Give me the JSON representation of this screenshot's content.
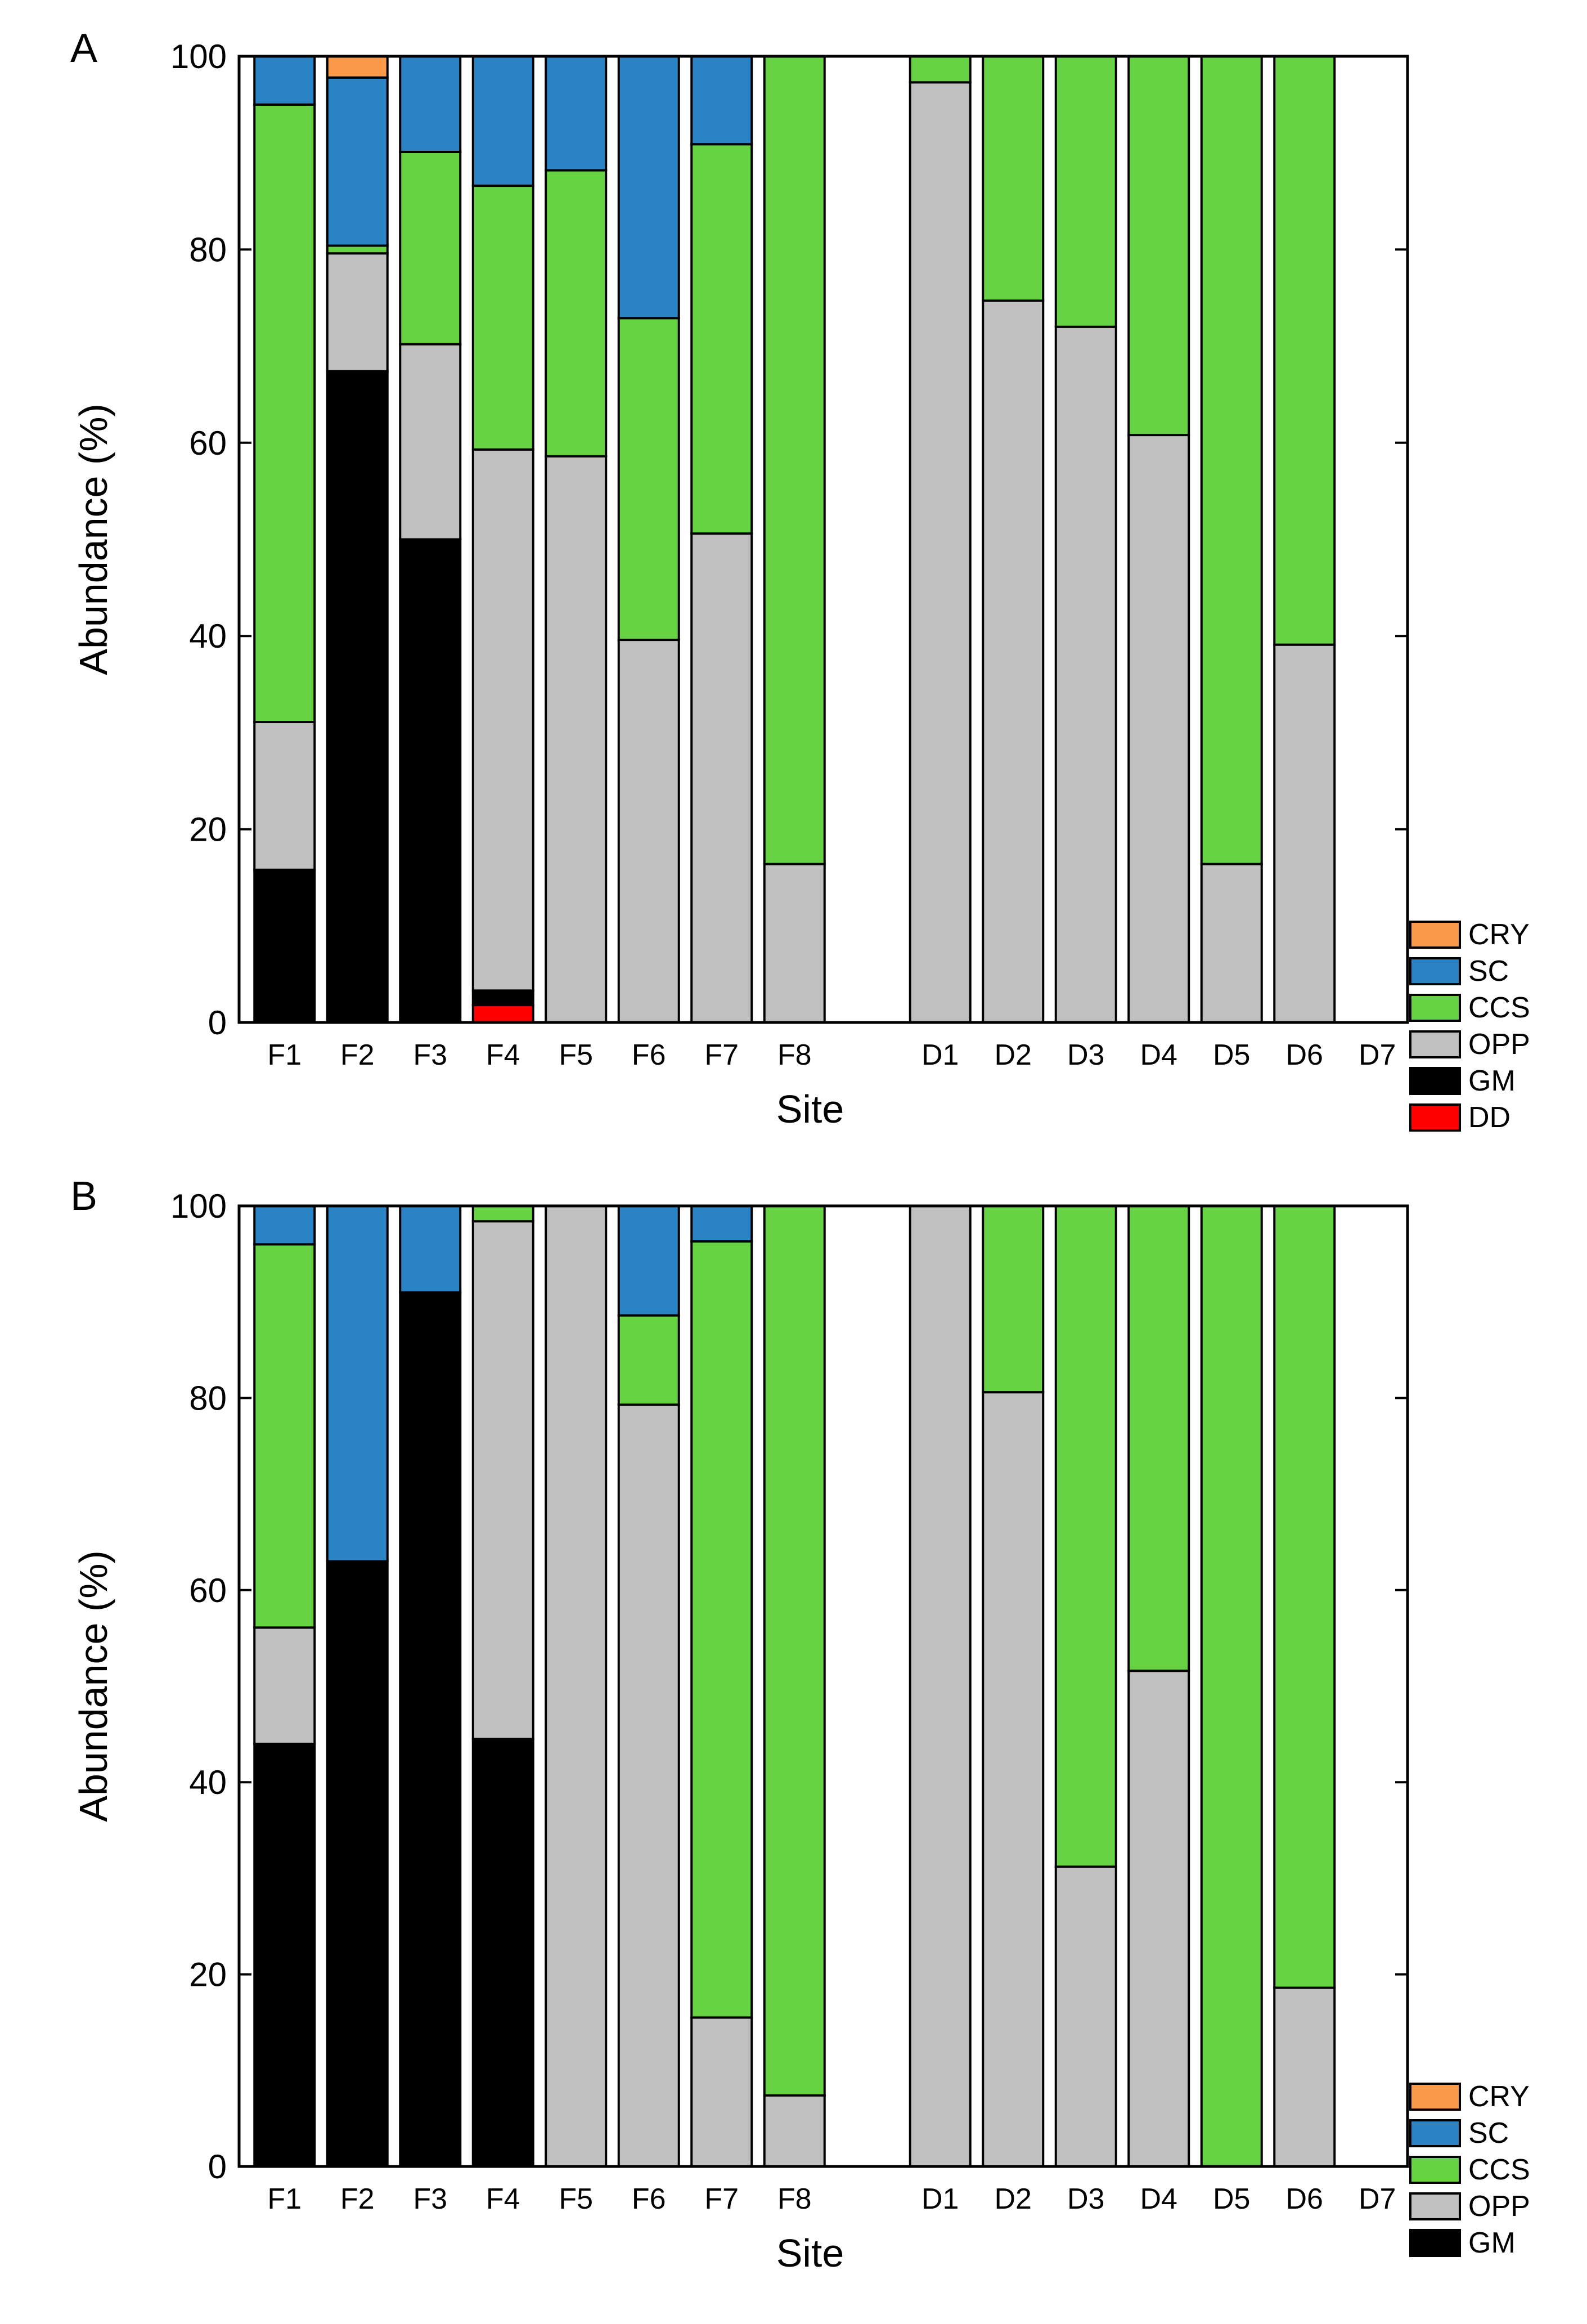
{
  "chart_data": [
    {
      "type": "stacked-bar",
      "panel": "A",
      "xlabel": "Site",
      "ylabel": "Abundance (%)",
      "ylim": [
        0,
        100
      ],
      "yticks": [
        0,
        20,
        40,
        60,
        80,
        100
      ],
      "categories": [
        "F1",
        "F2",
        "F3",
        "F4",
        "F5",
        "F6",
        "F7",
        "F8",
        "",
        "D1",
        "D2",
        "D3",
        "D4",
        "D5",
        "D6",
        "D7"
      ],
      "series": [
        {
          "name": "DD",
          "color": "#ff0000",
          "values": [
            0,
            0,
            0,
            1.8,
            0,
            0,
            0,
            0,
            0,
            0,
            0,
            0,
            0,
            0,
            0,
            0
          ]
        },
        {
          "name": "GM",
          "color": "#000000",
          "values": [
            15.8,
            67.4,
            50,
            1.5,
            0,
            0,
            0,
            0,
            0,
            0,
            0,
            0,
            0,
            0,
            0,
            0
          ]
        },
        {
          "name": "OPP",
          "color": "#c0c0c0",
          "values": [
            15.3,
            12.2,
            20.2,
            56,
            58.6,
            39.6,
            50.6,
            16.4,
            0,
            97.3,
            74.7,
            72,
            60.8,
            16.4,
            39.1,
            0
          ]
        },
        {
          "name": "CCS",
          "color": "#66d244",
          "values": [
            63.9,
            0.8,
            19.9,
            27.3,
            29.6,
            33.3,
            40.3,
            83.6,
            0,
            2.7,
            25.3,
            28,
            39.2,
            83.6,
            60.9,
            0
          ]
        },
        {
          "name": "SC",
          "color": "#2a83c4",
          "values": [
            5,
            17.4,
            9.9,
            13.4,
            11.8,
            27.1,
            9.1,
            0,
            0,
            0,
            0,
            0,
            0,
            0,
            0,
            0
          ]
        },
        {
          "name": "CRY",
          "color": "#fb9b4a",
          "values": [
            0,
            2.2,
            0,
            0,
            0,
            0,
            0,
            0,
            0,
            0,
            0,
            0,
            0,
            0,
            0,
            0
          ]
        }
      ],
      "legend": [
        "CRY",
        "SC",
        "CCS",
        "OPP",
        "GM",
        "DD"
      ],
      "legend_position": "bottom-right outside"
    },
    {
      "type": "stacked-bar",
      "panel": "B",
      "xlabel": "Site",
      "ylabel": "Abundance (%)",
      "ylim": [
        0,
        100
      ],
      "yticks": [
        0,
        20,
        40,
        60,
        80,
        100
      ],
      "categories": [
        "F1",
        "F2",
        "F3",
        "F4",
        "F5",
        "F6",
        "F7",
        "F8",
        "",
        "D1",
        "D2",
        "D3",
        "D4",
        "D5",
        "D6",
        "D7"
      ],
      "series": [
        {
          "name": "GM",
          "color": "#000000",
          "values": [
            44,
            63,
            91,
            44.5,
            0,
            0,
            0,
            0,
            0,
            0,
            0,
            0,
            0,
            0,
            0,
            0
          ]
        },
        {
          "name": "OPP",
          "color": "#c0c0c0",
          "values": [
            12.1,
            0,
            0,
            53.9,
            100,
            79.3,
            15.5,
            7.4,
            0,
            100,
            80.6,
            31.2,
            51.6,
            0,
            18.6,
            0
          ]
        },
        {
          "name": "CCS",
          "color": "#66d244",
          "values": [
            39.9,
            0,
            0,
            1.6,
            0,
            9.3,
            80.8,
            92.6,
            0,
            0,
            19.4,
            68.8,
            48.4,
            100,
            81.4,
            0
          ]
        },
        {
          "name": "SC",
          "color": "#2a83c4",
          "values": [
            4,
            37,
            9,
            0,
            0,
            11.4,
            3.7,
            0,
            0,
            0,
            0,
            0,
            0,
            0,
            0,
            0
          ]
        },
        {
          "name": "CRY",
          "color": "#fb9b4a",
          "values": [
            0,
            0,
            0,
            0,
            0,
            0,
            0,
            0,
            0,
            0,
            0,
            0,
            0,
            0,
            0,
            0
          ]
        }
      ],
      "legend": [
        "CRY",
        "SC",
        "CCS",
        "OPP",
        "GM"
      ],
      "legend_position": "bottom-right outside"
    }
  ]
}
